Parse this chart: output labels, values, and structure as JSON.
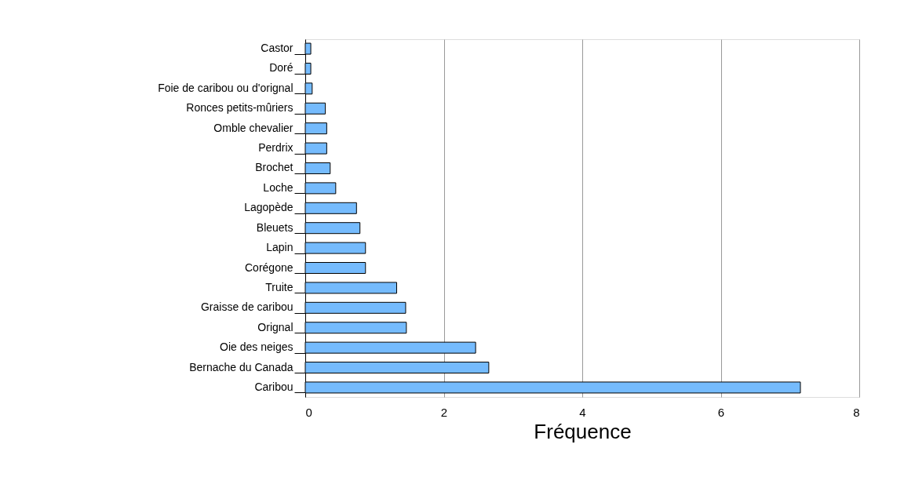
{
  "chart_data": {
    "type": "bar",
    "orientation": "horizontal",
    "xlabel": "Fréquence",
    "categories": [
      "Castor",
      "Doré",
      "Foie de caribou ou d'orignal",
      "Ronces petits-mûriers",
      "Omble chevalier",
      "Perdrix",
      "Brochet",
      "Loche",
      "Lagopède",
      "Bleuets",
      "Lapin",
      "Corégone",
      "Truite",
      "Graisse de caribou",
      "Orignal",
      "Oie des neiges",
      "Bernache du Canada",
      "Caribou"
    ],
    "values": [
      0.08,
      0.08,
      0.1,
      0.29,
      0.31,
      0.31,
      0.36,
      0.44,
      0.74,
      0.79,
      0.87,
      0.87,
      1.32,
      1.45,
      1.46,
      2.46,
      2.65,
      7.15
    ],
    "color": "#75bbfd",
    "xlim": [
      0,
      8
    ],
    "xticks": [
      0,
      2,
      4,
      6,
      8
    ],
    "grid": "x"
  }
}
